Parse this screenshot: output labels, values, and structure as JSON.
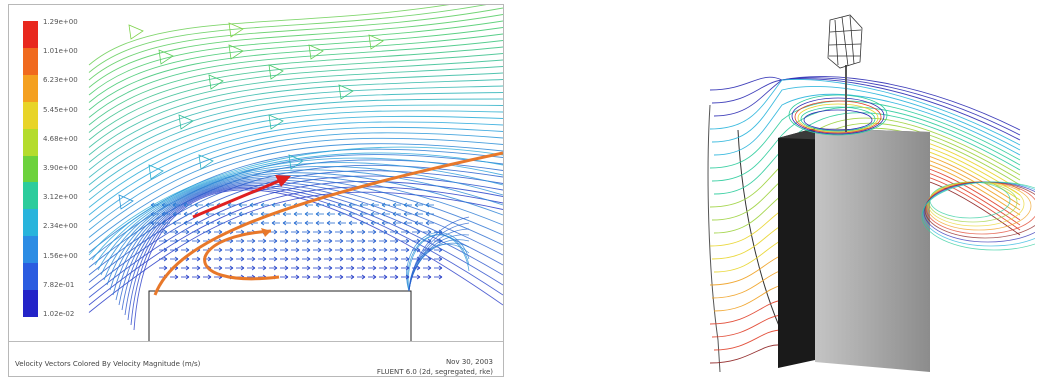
{
  "left_figure": {
    "legend": {
      "labels": [
        "1.29e+00",
        "1.01e+00",
        "6.23e+00",
        "5.45e+00",
        "4.68e+00",
        "3.90e+00",
        "3.12e+00",
        "2.34e+00",
        "1.56e+00",
        "7.82e-01",
        "1.02e-02"
      ],
      "colors": [
        "#e8281e",
        "#f06a1e",
        "#f4a020",
        "#e8d428",
        "#b4dc2c",
        "#6cd23c",
        "#2ccc9c",
        "#28b4dc",
        "#2c8ce4",
        "#2a5ce0",
        "#2424c8"
      ]
    },
    "caption": "Velocity Vectors Colored By Velocity Magnitude (m/s)",
    "date": "Nov 30, 2003",
    "solver": "FLUENT 6.0 (2d, segregated, rke)"
  },
  "right_figure": {
    "building_color": "#a8a8a8",
    "streamline_colors": [
      "#2d2db4",
      "#28b4dc",
      "#2ccc9c",
      "#9cd23c",
      "#e8d428",
      "#f0a020",
      "#e0402a",
      "#8c1e1e"
    ]
  }
}
